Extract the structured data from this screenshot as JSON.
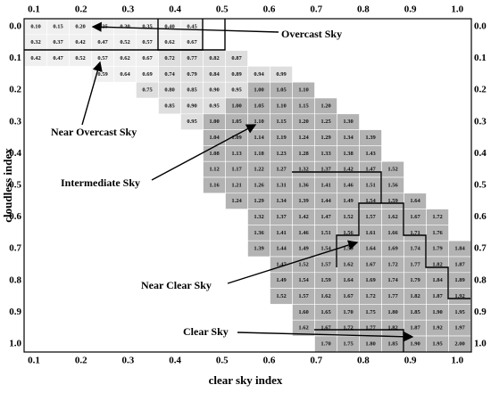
{
  "x_ticks": [
    "0.1",
    "0.2",
    "0.3",
    "0.4",
    "0.5",
    "0.6",
    "0.7",
    "0.8",
    "0.9",
    "1.0"
  ],
  "y_ticks": [
    "0.0",
    "0.1",
    "0.2",
    "0.3",
    "0.4",
    "0.5",
    "0.6",
    "0.7",
    "0.8",
    "0.9",
    "1.0"
  ],
  "x_axis_label": "clear sky index",
  "y_axis_label": "cloudless index",
  "annotations": [
    "Overcast Sky",
    "Near Overcast Sky",
    "Intermediate Sky",
    "Near Clear Sky",
    "Clear Sky"
  ],
  "rows": [
    [
      "0.10",
      "0.15",
      "0.20",
      "0.25",
      "0.30",
      "0.35",
      "0.40",
      "0.45",
      null,
      null,
      null,
      null,
      null,
      null,
      null,
      null,
      null,
      null,
      null,
      null
    ],
    [
      "0.32",
      "0.37",
      "0.42",
      "0.47",
      "0.52",
      "0.57",
      "0.62",
      "0.67",
      null,
      null,
      null,
      null,
      null,
      null,
      null,
      null,
      null,
      null,
      null,
      null
    ],
    [
      "0.42",
      "0.47",
      "0.52",
      "0.57",
      "0.62",
      "0.67",
      "0.72",
      "0.77",
      "0.82",
      "0.87",
      null,
      null,
      null,
      null,
      null,
      null,
      null,
      null,
      null,
      null
    ],
    [
      null,
      null,
      null,
      "0.59",
      "0.64",
      "0.69",
      "0.74",
      "0.79",
      "0.84",
      "0.89",
      "0.94",
      "0.99",
      null,
      null,
      null,
      null,
      null,
      null,
      null,
      null
    ],
    [
      null,
      null,
      null,
      null,
      null,
      "0.75",
      "0.80",
      "0.85",
      "0.90",
      "0.95",
      "1.00",
      "1.05",
      "1.10",
      null,
      null,
      null,
      null,
      null,
      null,
      null
    ],
    [
      null,
      null,
      null,
      null,
      null,
      null,
      "0.85",
      "0.90",
      "0.95",
      "1.00",
      "1.05",
      "1.10",
      "1.15",
      "1.20",
      null,
      null,
      null,
      null,
      null,
      null
    ],
    [
      null,
      null,
      null,
      null,
      null,
      null,
      null,
      "0.95",
      "1.00",
      "1.05",
      "1.10",
      "1.15",
      "1.20",
      "1.25",
      "1.30",
      null,
      null,
      null,
      null,
      null
    ],
    [
      null,
      null,
      null,
      null,
      null,
      null,
      null,
      null,
      "1.04",
      "1.09",
      "1.14",
      "1.19",
      "1.24",
      "1.29",
      "1.34",
      "1.39",
      null,
      null,
      null,
      null
    ],
    [
      null,
      null,
      null,
      null,
      null,
      null,
      null,
      null,
      "1.08",
      "1.13",
      "1.18",
      "1.23",
      "1.28",
      "1.33",
      "1.38",
      "1.43",
      null,
      null,
      null,
      null
    ],
    [
      null,
      null,
      null,
      null,
      null,
      null,
      null,
      null,
      "1.12",
      "1.17",
      "1.22",
      "1.27",
      "1.32",
      "1.37",
      "1.42",
      "1.47",
      "1.52",
      null,
      null,
      null
    ],
    [
      null,
      null,
      null,
      null,
      null,
      null,
      null,
      null,
      "1.16",
      "1.21",
      "1.26",
      "1.31",
      "1.36",
      "1.41",
      "1.46",
      "1.51",
      "1.56",
      null,
      null,
      null
    ],
    [
      null,
      null,
      null,
      null,
      null,
      null,
      null,
      null,
      null,
      "1.24",
      "1.29",
      "1.34",
      "1.39",
      "1.44",
      "1.49",
      "1.54",
      "1.59",
      "1.64",
      null,
      null
    ],
    [
      null,
      null,
      null,
      null,
      null,
      null,
      null,
      null,
      null,
      null,
      "1.32",
      "1.37",
      "1.42",
      "1.47",
      "1.52",
      "1.57",
      "1.62",
      "1.67",
      "1.72",
      null
    ],
    [
      null,
      null,
      null,
      null,
      null,
      null,
      null,
      null,
      null,
      null,
      "1.36",
      "1.41",
      "1.46",
      "1.51",
      "1.56",
      "1.61",
      "1.66",
      "1.71",
      "1.76",
      null
    ],
    [
      null,
      null,
      null,
      null,
      null,
      null,
      null,
      null,
      null,
      null,
      "1.39",
      "1.44",
      "1.49",
      "1.54",
      "1.59",
      "1.64",
      "1.69",
      "1.74",
      "1.79",
      "1.84"
    ],
    [
      null,
      null,
      null,
      null,
      null,
      null,
      null,
      null,
      null,
      null,
      null,
      "1.47",
      "1.52",
      "1.57",
      "1.62",
      "1.67",
      "1.72",
      "1.77",
      "1.82",
      "1.87"
    ],
    [
      null,
      null,
      null,
      null,
      null,
      null,
      null,
      null,
      null,
      null,
      null,
      "1.49",
      "1.54",
      "1.59",
      "1.64",
      "1.69",
      "1.74",
      "1.79",
      "1.84",
      "1.89"
    ],
    [
      null,
      null,
      null,
      null,
      null,
      null,
      null,
      null,
      null,
      null,
      null,
      "1.52",
      "1.57",
      "1.62",
      "1.67",
      "1.72",
      "1.77",
      "1.82",
      "1.87",
      "1.92"
    ],
    [
      null,
      null,
      null,
      null,
      null,
      null,
      null,
      null,
      null,
      null,
      null,
      null,
      "1.60",
      "1.65",
      "1.70",
      "1.75",
      "1.80",
      "1.85",
      "1.90",
      "1.95"
    ],
    [
      null,
      null,
      null,
      null,
      null,
      null,
      null,
      null,
      null,
      null,
      null,
      null,
      "1.62",
      "1.67",
      "1.72",
      "1.77",
      "1.82",
      "1.87",
      "1.92",
      "1.97"
    ],
    [
      null,
      null,
      null,
      null,
      null,
      null,
      null,
      null,
      null,
      null,
      null,
      null,
      null,
      "1.70",
      "1.75",
      "1.80",
      "1.85",
      "1.90",
      "1.95",
      "2.00"
    ]
  ]
}
